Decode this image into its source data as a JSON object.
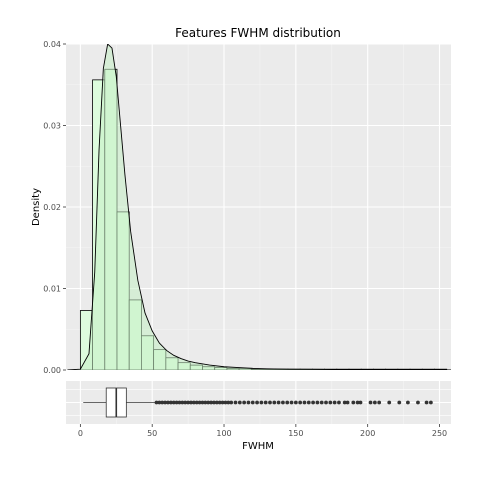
{
  "chart_data": {
    "type": "bar",
    "title": "Features FWHM distribution",
    "xlabel": "FWHM",
    "ylabel": "Density",
    "xlim": [
      -10,
      258
    ],
    "ylim": [
      0,
      0.04
    ],
    "x_ticks": [
      0,
      50,
      100,
      150,
      200,
      250
    ],
    "y_ticks": [
      0.0,
      0.01,
      0.02,
      0.03,
      0.04
    ],
    "y_tick_labels": [
      "0.00",
      "0.01",
      "0.02",
      "0.03",
      "0.04"
    ],
    "grid": true,
    "legend": "none",
    "histogram": {
      "bin_width": 8.5,
      "bin_start": 0,
      "densities": [
        0.0073,
        0.0356,
        0.0369,
        0.0194,
        0.0086,
        0.0042,
        0.0025,
        0.0015,
        0.0009,
        0.0006,
        0.0004,
        0.0003,
        0.0002,
        0.0002,
        0.0001,
        0.0001,
        0.0001,
        0.0001,
        0.0001,
        0.0001,
        0.0001,
        0.0001,
        0.0001,
        0.0001,
        0.0001,
        0.0001,
        0.0001,
        0.0001,
        0.0001,
        0.0001
      ],
      "fill": "#ddfcdd",
      "outline": "#000000"
    },
    "density_curve": {
      "x": [
        -9,
        0,
        6,
        10,
        13,
        16,
        19,
        22,
        25,
        28,
        31,
        35,
        40,
        45,
        50,
        55,
        60,
        65,
        70,
        75,
        80,
        90,
        100,
        110,
        120,
        130,
        145,
        160,
        180,
        200,
        220,
        240,
        258
      ],
      "y": [
        0.0,
        0.0001,
        0.002,
        0.012,
        0.027,
        0.037,
        0.04,
        0.0395,
        0.036,
        0.03,
        0.024,
        0.017,
        0.011,
        0.007,
        0.0048,
        0.0033,
        0.0024,
        0.0018,
        0.0014,
        0.0011,
        0.0009,
        0.0006,
        0.0004,
        0.0003,
        0.0002,
        0.00015,
        0.0001,
        8e-05,
        5e-05,
        4e-05,
        3e-05,
        2e-05,
        1e-05
      ],
      "fill": "#c5eec5",
      "stroke": "#000000"
    },
    "boxplot": {
      "min": 2,
      "q1": 18,
      "median": 25,
      "q3": 32,
      "whisker_high": 52,
      "outliers": [
        53,
        55,
        57,
        59,
        61,
        63,
        65,
        67,
        69,
        71,
        73,
        75,
        77,
        79,
        81,
        83,
        85,
        87,
        89,
        91,
        93,
        95,
        97,
        99,
        101,
        103,
        105,
        108,
        111,
        114,
        117,
        120,
        123,
        126,
        129,
        132,
        135,
        138,
        141,
        144,
        147,
        150,
        153,
        156,
        159,
        162,
        165,
        168,
        171,
        174,
        177,
        180,
        184,
        186,
        190,
        193,
        195,
        202,
        205,
        208,
        215,
        222,
        228,
        235,
        241,
        244
      ]
    },
    "colors": {
      "panel_bg": "#ebebeb",
      "grid_major": "#ffffff",
      "outlier": "#333333"
    }
  }
}
